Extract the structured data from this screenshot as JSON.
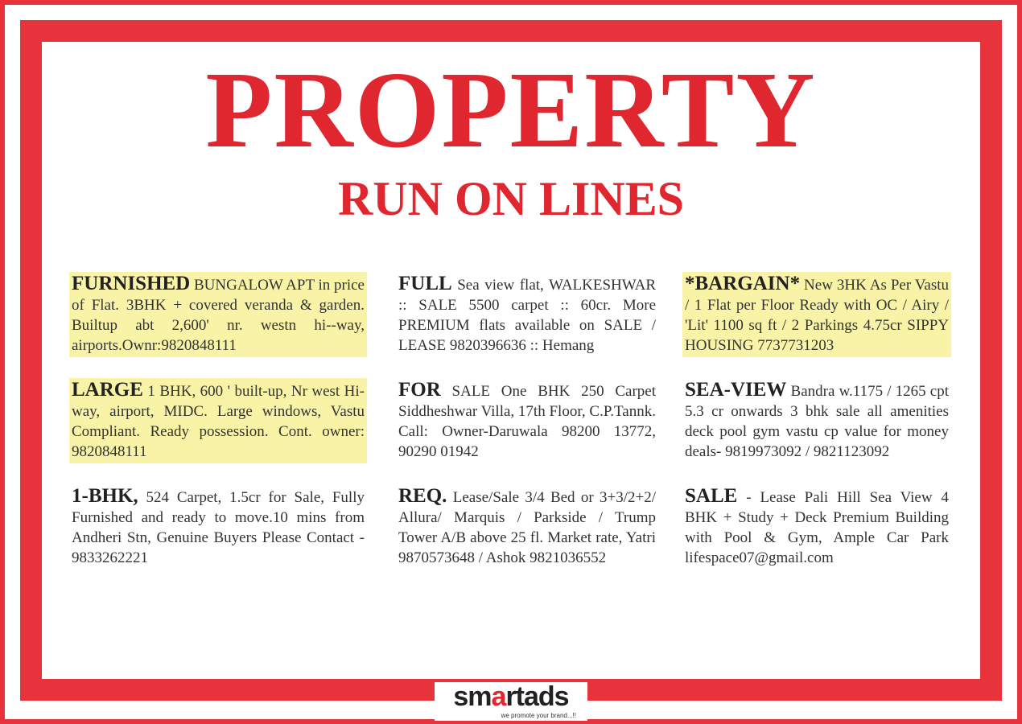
{
  "title": "PROPERTY",
  "subtitle": "RUN ON LINES",
  "accent_color": "#e8323c",
  "highlight_color": "#f8f3a6",
  "ads": [
    {
      "keyword": "FURNISHED",
      "text": " BUNGALOW APT in price of Flat. 3BHK + covered veranda & garden. Builtup abt 2,600' nr. westn hi--way, airports.Ownr:9820848111",
      "highlighted": true
    },
    {
      "keyword": "LARGE",
      "text": " 1 BHK, 600 ' built-up, Nr west Hi-way, airport, MIDC. Large windows, Vastu Compliant. Ready possession. Cont. owner: 9820848111",
      "highlighted": true
    },
    {
      "keyword": "1-BHK,",
      "text": " 524 Carpet, 1.5cr for Sale, Fully Furnished and ready to move.10 mins from Andheri Stn, Genuine Buyers Please Contact - 9833262221",
      "highlighted": false
    },
    {
      "keyword": "FULL",
      "text": " Sea view flat, WALKESHWAR :: SALE 5500 carpet :: 60cr. More PREMIUM flats available on SALE / LEASE 9820396636 :: Hemang",
      "highlighted": false
    },
    {
      "keyword": "FOR",
      "text": " SALE One BHK 250 Carpet Siddheshwar Villa, 17th Floor, C.P.Tannk. Call: Owner-Daruwala 98200 13772, 90290 01942",
      "highlighted": false
    },
    {
      "keyword": "REQ.",
      "text": " Lease/Sale 3/4 Bed or 3+3/2+2/ Allura/ Marquis / Parkside / Trump Tower A/B above 25 fl. Market rate, Yatri 9870573648 / Ashok 9821036552",
      "highlighted": false
    },
    {
      "keyword": "*BARGAIN*",
      "text": " New 3HK As Per Vastu / 1 Flat per Floor Ready with OC / Airy / 'Lit' 1100 sq ft / 2 Parkings 4.75cr SIPPY HOUSING 7737731203",
      "highlighted": true
    },
    {
      "keyword": "SEA-VIEW",
      "text": " Bandra w.1175 / 1265 cpt 5.3 cr onwards 3 bhk sale all amenities deck pool gym vastu cp value for money deals- 9819973092 / 9821123092",
      "highlighted": false
    },
    {
      "keyword": "SALE",
      "text": " - Lease Pali Hill Sea View 4 BHK + Study + Deck Premium Building with Pool & Gym, Ample Car Park lifespace07@gmail.com",
      "highlighted": false
    }
  ],
  "logo": {
    "brand_a": "sm",
    "brand_b": "a",
    "brand_c": "rtads",
    "tagline": "we promote your brand...!!"
  }
}
